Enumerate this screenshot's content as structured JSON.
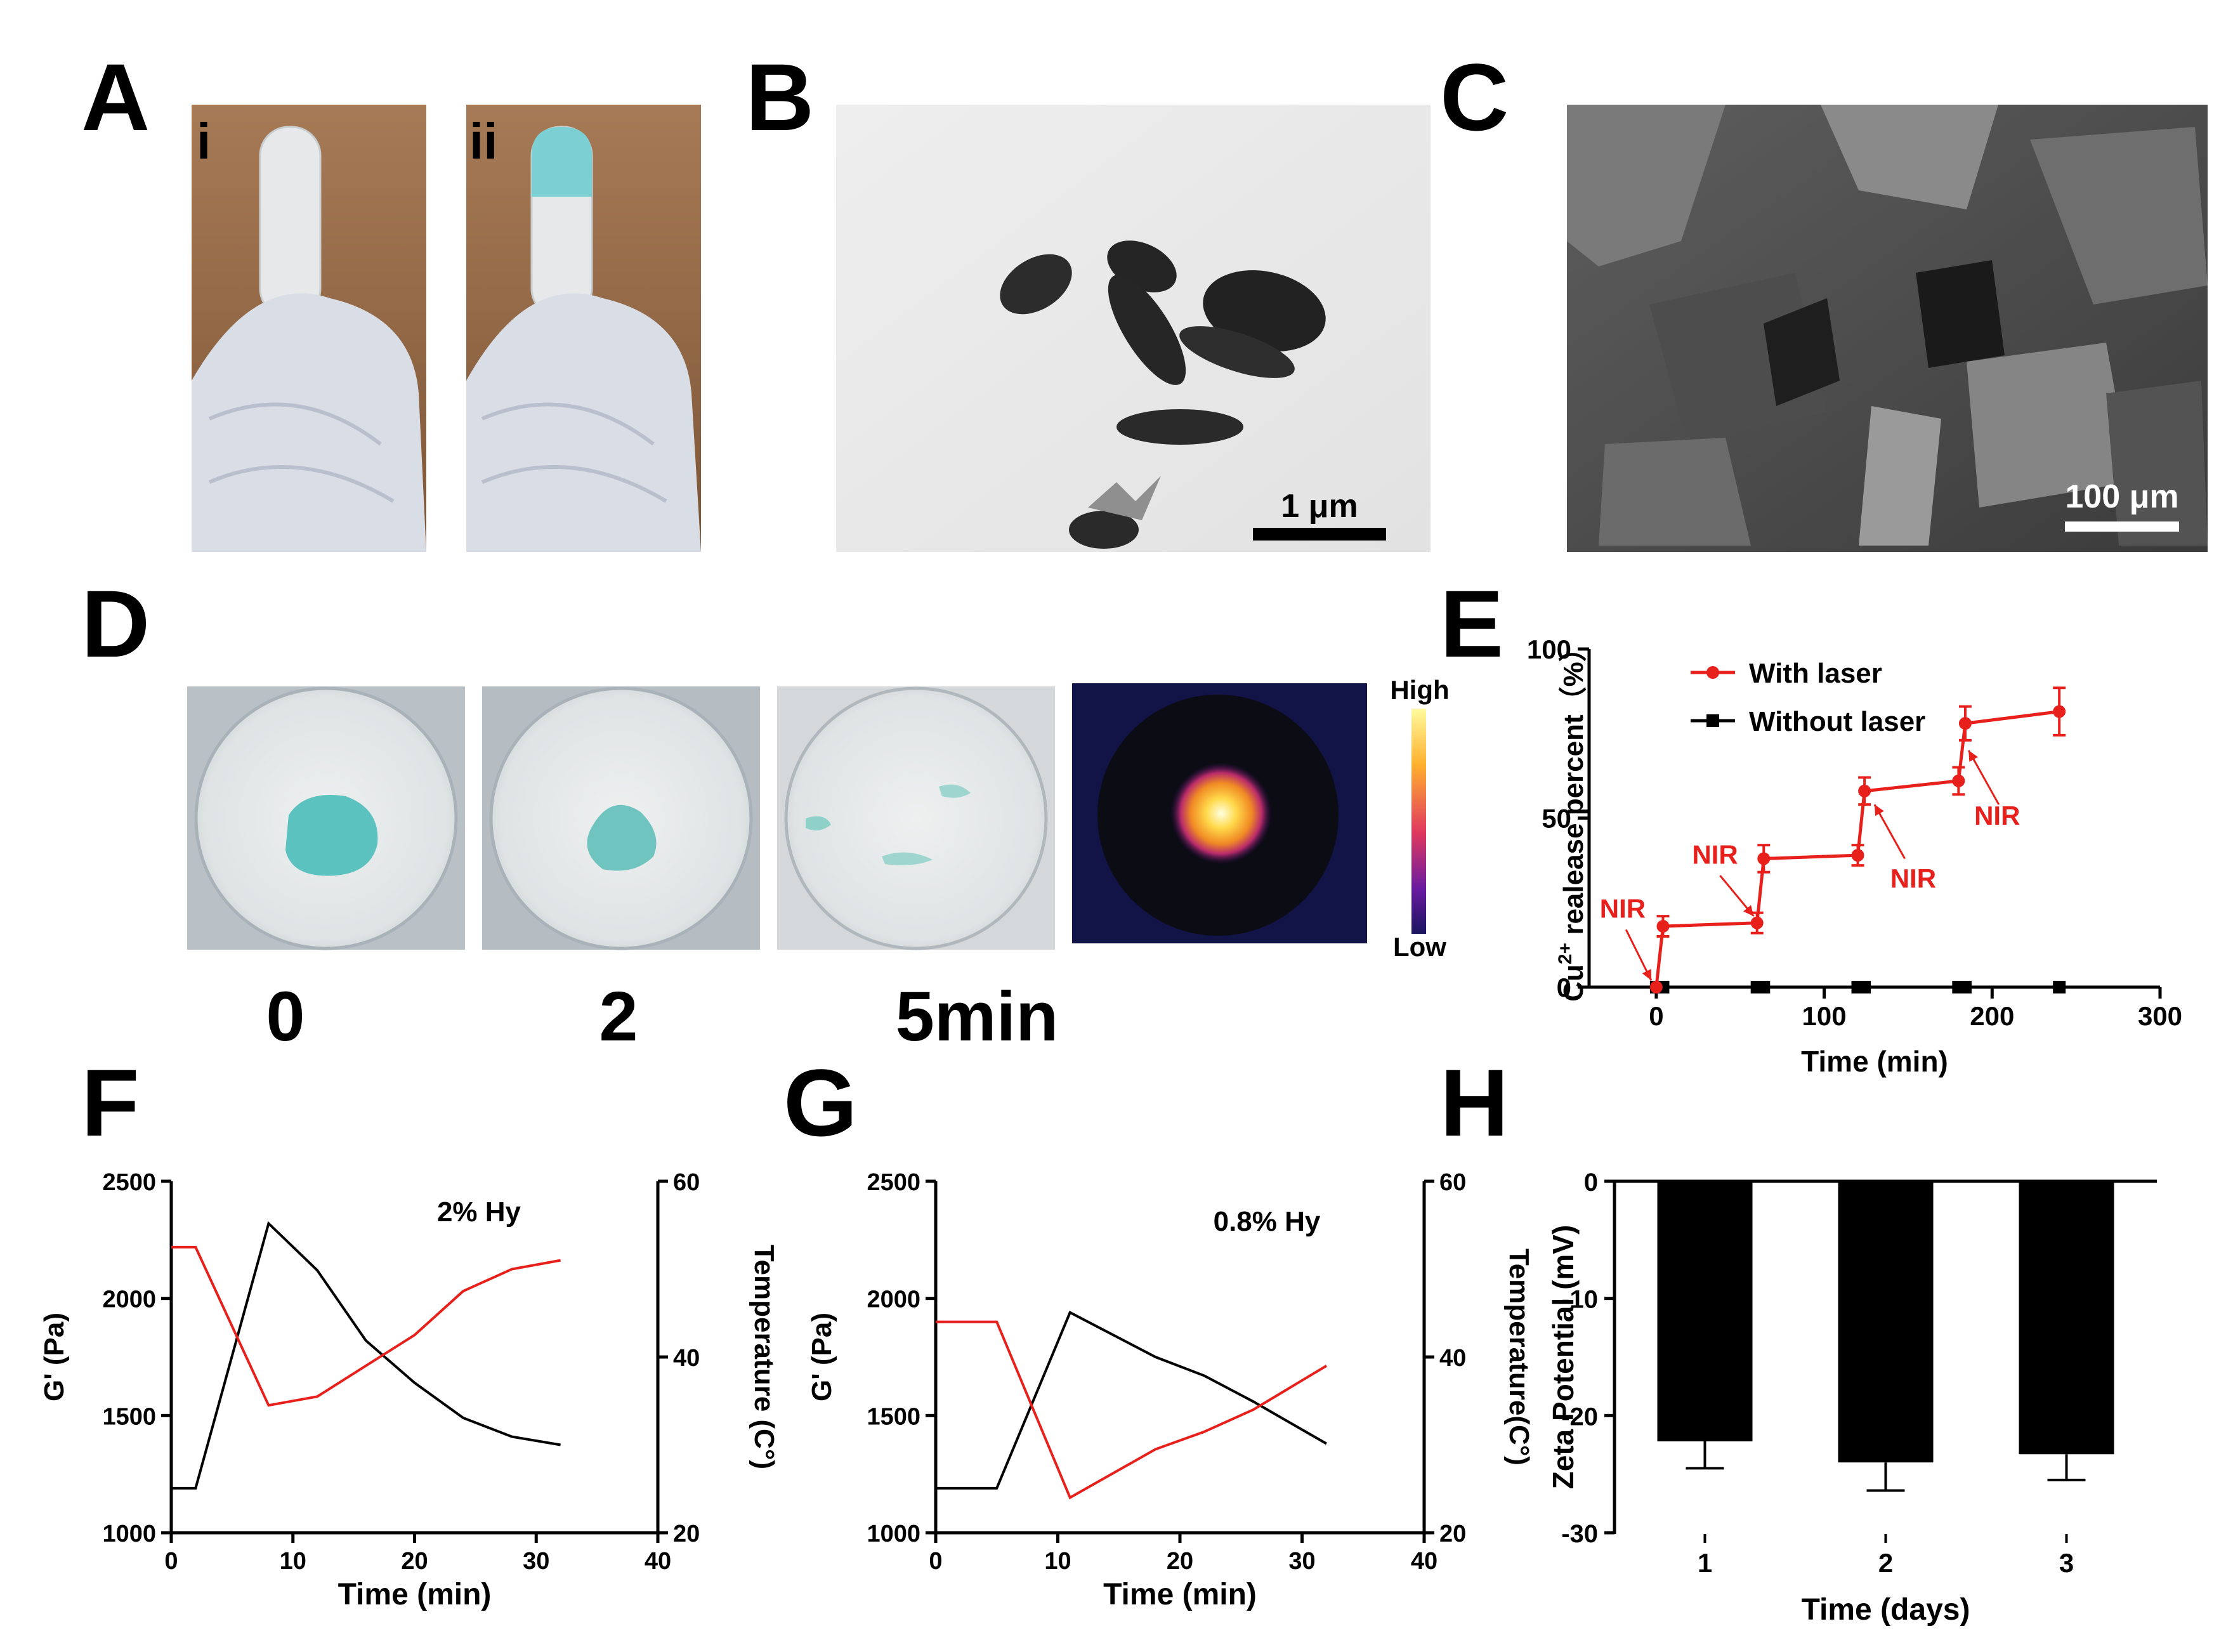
{
  "panel_labels": {
    "A": "A",
    "B": "B",
    "C": "C",
    "D": "D",
    "E": "E",
    "F": "F",
    "G": "G",
    "H": "H"
  },
  "panel_a": {
    "label_i": "i",
    "label_ii": "ii"
  },
  "panel_b": {
    "scale_bar": "1 μm"
  },
  "panel_c": {
    "scale_bar": "100 μm"
  },
  "panel_d": {
    "time_labels": [
      "0",
      "2",
      "5min"
    ],
    "colorbar_high": "High",
    "colorbar_low": "Low"
  },
  "colors": {
    "red": "#e8201c",
    "black": "#000000",
    "gel_blue": "#5cc2c0",
    "thermal_bg": "#121346"
  },
  "chart_data": [
    {
      "id": "E",
      "type": "line",
      "xlabel": "Time (min)",
      "ylabel_parts": [
        "Cu",
        "2+",
        " realease percent（%）"
      ],
      "xlim": [
        -40,
        300
      ],
      "ylim": [
        0,
        100
      ],
      "xticks": [
        0,
        100,
        200,
        300
      ],
      "yticks": [
        0,
        50,
        100
      ],
      "legend_position": "top-left",
      "series": [
        {
          "name": "With laser",
          "color": "#e8201c",
          "marker": "circle",
          "x": [
            0,
            4,
            60,
            64,
            120,
            124,
            180,
            184,
            240
          ],
          "y": [
            0,
            18,
            19,
            38,
            39,
            58,
            61,
            78,
            81.5
          ],
          "err": [
            0,
            3,
            3,
            4,
            3,
            4,
            4,
            5,
            7
          ]
        },
        {
          "name": "Without laser",
          "color": "#000000",
          "marker": "square",
          "x": [
            0,
            4,
            60,
            64,
            120,
            124,
            180,
            184,
            240
          ],
          "y": [
            0,
            0,
            0,
            0,
            0,
            0,
            0,
            0,
            0
          ]
        }
      ],
      "annotations": [
        "NIR",
        "NIR",
        "NIR",
        "NIR"
      ]
    },
    {
      "id": "F",
      "type": "line",
      "title": "2% Hy",
      "xlabel": "Time (min)",
      "ylabel_left": "G' (Pa)",
      "ylabel_right": "Temperature (C°)",
      "xlim": [
        0,
        40
      ],
      "ylim_left": [
        1000,
        2500
      ],
      "ylim_right": [
        20,
        60
      ],
      "xticks": [
        0,
        10,
        20,
        30,
        40
      ],
      "yticks_left": [
        1000,
        1500,
        2000,
        2500
      ],
      "yticks_right": [
        20,
        40,
        60
      ],
      "series": [
        {
          "axis": "left",
          "color": "#000000",
          "x": [
            0,
            2,
            8,
            12,
            16,
            20,
            24,
            28,
            32
          ],
          "y": [
            1190,
            1190,
            2320,
            2120,
            1820,
            1640,
            1490,
            1410,
            1375
          ]
        },
        {
          "axis": "right",
          "color": "#e8201c",
          "x": [
            0,
            2,
            8,
            12,
            16,
            20,
            24,
            28,
            32
          ],
          "y": [
            52.5,
            52.5,
            34.5,
            35.5,
            39,
            42.5,
            47.5,
            50,
            51
          ]
        }
      ]
    },
    {
      "id": "G",
      "type": "line",
      "title": "0.8% Hy",
      "xlabel": "Time (min)",
      "ylabel_left": "G' (Pa)",
      "ylabel_right": "Temperature(C°)",
      "xlim": [
        0,
        40
      ],
      "ylim_left": [
        1000,
        2500
      ],
      "ylim_right": [
        20,
        60
      ],
      "xticks": [
        0,
        10,
        20,
        30,
        40
      ],
      "yticks_left": [
        1000,
        1500,
        2000,
        2500
      ],
      "yticks_right": [
        20,
        40,
        60
      ],
      "series": [
        {
          "axis": "left",
          "color": "#000000",
          "x": [
            0,
            5,
            11,
            18,
            22,
            26,
            30,
            32
          ],
          "y": [
            1190,
            1190,
            1940,
            1750,
            1670,
            1560,
            1440,
            1380
          ]
        },
        {
          "axis": "right",
          "color": "#e8201c",
          "x": [
            0,
            5,
            11,
            18,
            22,
            26,
            32
          ],
          "y": [
            44,
            44,
            24,
            29.5,
            31.5,
            34,
            39
          ]
        }
      ]
    },
    {
      "id": "H",
      "type": "bar",
      "xlabel": "Time (days)",
      "ylabel": "Zeta Potential (mV)",
      "categories": [
        "1",
        "2",
        "3"
      ],
      "values": [
        -22.2,
        -24,
        -23.3
      ],
      "errors": [
        2.3,
        2.4,
        2.2
      ],
      "ylim": [
        -30,
        0
      ],
      "yticks": [
        0,
        -10,
        -20,
        -30
      ]
    }
  ]
}
